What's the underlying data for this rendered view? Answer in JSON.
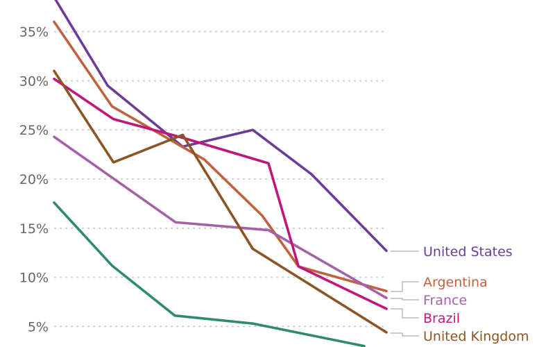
{
  "chart_data": {
    "type": "line",
    "title": "",
    "xlabel": "",
    "ylabel": "",
    "x": [
      0,
      1,
      2,
      3,
      4,
      5
    ],
    "ylim": [
      3,
      38.5
    ],
    "yticks": [
      5,
      10,
      15,
      20,
      25,
      30,
      35
    ],
    "ytick_labels": [
      "5%",
      "10%",
      "15%",
      "20%",
      "25%",
      "30%",
      "35%"
    ],
    "grid": true,
    "legend": "direct labels at right end of lines",
    "series": [
      {
        "name": "United States",
        "color": "#6a3d9a",
        "points": [
          [
            0,
            38.5
          ],
          [
            0.75,
            29.5
          ],
          [
            1.8,
            23.3
          ],
          [
            2.78,
            25
          ],
          [
            3.6,
            20.5
          ],
          [
            4.65,
            12.7
          ]
        ]
      },
      {
        "name": "Argentina",
        "color": "#c0623d",
        "points": [
          [
            0,
            36
          ],
          [
            0.81,
            27.4
          ],
          [
            2.1,
            22
          ],
          [
            2.91,
            16.3
          ],
          [
            3.42,
            11.1
          ],
          [
            4.65,
            8.6
          ]
        ]
      },
      {
        "name": "France",
        "color": "#a561a8",
        "points": [
          [
            0,
            24.3
          ],
          [
            1.7,
            15.6
          ],
          [
            3.0,
            14.8
          ],
          [
            4.65,
            7.9
          ]
        ]
      },
      {
        "name": "Brazil",
        "color": "#c0177b",
        "points": [
          [
            0,
            30.2
          ],
          [
            0.83,
            26.1
          ],
          [
            1.8,
            24.2
          ],
          [
            3.0,
            21.6
          ],
          [
            3.42,
            11.1
          ],
          [
            4.65,
            6.8
          ]
        ]
      },
      {
        "name": "United Kingdom",
        "color": "#8c5524",
        "points": [
          [
            0,
            31
          ],
          [
            0.83,
            21.7
          ],
          [
            1.8,
            24.5
          ],
          [
            2.78,
            12.9
          ],
          [
            4.65,
            4.4
          ]
        ]
      },
      {
        "name": "",
        "color": "#2e8b6f",
        "points": [
          [
            0,
            17.6
          ],
          [
            0.81,
            11.2
          ],
          [
            1.69,
            6.1
          ],
          [
            2.78,
            5.3
          ],
          [
            4.34,
            3
          ]
        ]
      }
    ]
  }
}
